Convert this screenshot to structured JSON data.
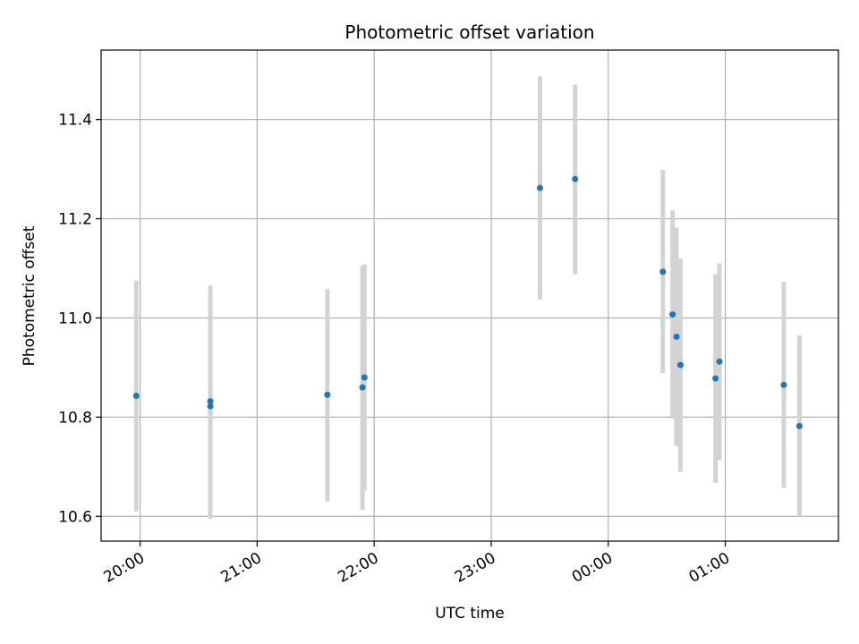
{
  "chart_data": {
    "type": "scatter",
    "title": "Photometric offset variation",
    "xlabel": "UTC time",
    "ylabel": "Photometric offset",
    "x_unit": "UTC clock time (day 1 = 19:xx/20:xx..., day 2 = 00:00 onward)",
    "xlim": [
      "19:40",
      "01:58"
    ],
    "ylim": [
      10.55,
      11.54
    ],
    "xticks": [
      "20:00",
      "21:00",
      "22:00",
      "23:00",
      "00:00",
      "01:00"
    ],
    "yticks": [
      10.6,
      10.8,
      11.0,
      11.2,
      11.4
    ],
    "grid": true,
    "point_color": "#1f77b4",
    "errorbar_color": "#d3d3d3",
    "points": [
      {
        "x": "19:58",
        "y": 10.843,
        "low": 10.61,
        "high": 11.075
      },
      {
        "x": "20:36",
        "y": 10.822,
        "low": 10.595,
        "high": 11.05
      },
      {
        "x": "20:36",
        "y": 10.832,
        "low": 10.6,
        "high": 11.065
      },
      {
        "x": "21:36",
        "y": 10.845,
        "low": 10.63,
        "high": 11.058
      },
      {
        "x": "21:54",
        "y": 10.86,
        "low": 10.613,
        "high": 11.105
      },
      {
        "x": "21:55",
        "y": 10.88,
        "low": 10.653,
        "high": 11.108
      },
      {
        "x": "23:25",
        "y": 11.262,
        "low": 11.037,
        "high": 11.487
      },
      {
        "x": "23:43",
        "y": 11.28,
        "low": 11.088,
        "high": 11.47
      },
      {
        "x": "00:28",
        "y": 11.093,
        "low": 10.889,
        "high": 11.298
      },
      {
        "x": "00:33",
        "y": 11.007,
        "low": 10.797,
        "high": 11.217
      },
      {
        "x": "00:35",
        "y": 10.962,
        "low": 10.742,
        "high": 11.182
      },
      {
        "x": "00:37",
        "y": 10.905,
        "low": 10.69,
        "high": 11.12
      },
      {
        "x": "00:55",
        "y": 10.878,
        "low": 10.668,
        "high": 11.088
      },
      {
        "x": "00:57",
        "y": 10.912,
        "low": 10.713,
        "high": 11.11
      },
      {
        "x": "01:30",
        "y": 10.865,
        "low": 10.658,
        "high": 11.073
      },
      {
        "x": "01:38",
        "y": 10.782,
        "low": 10.6,
        "high": 10.965
      }
    ]
  }
}
